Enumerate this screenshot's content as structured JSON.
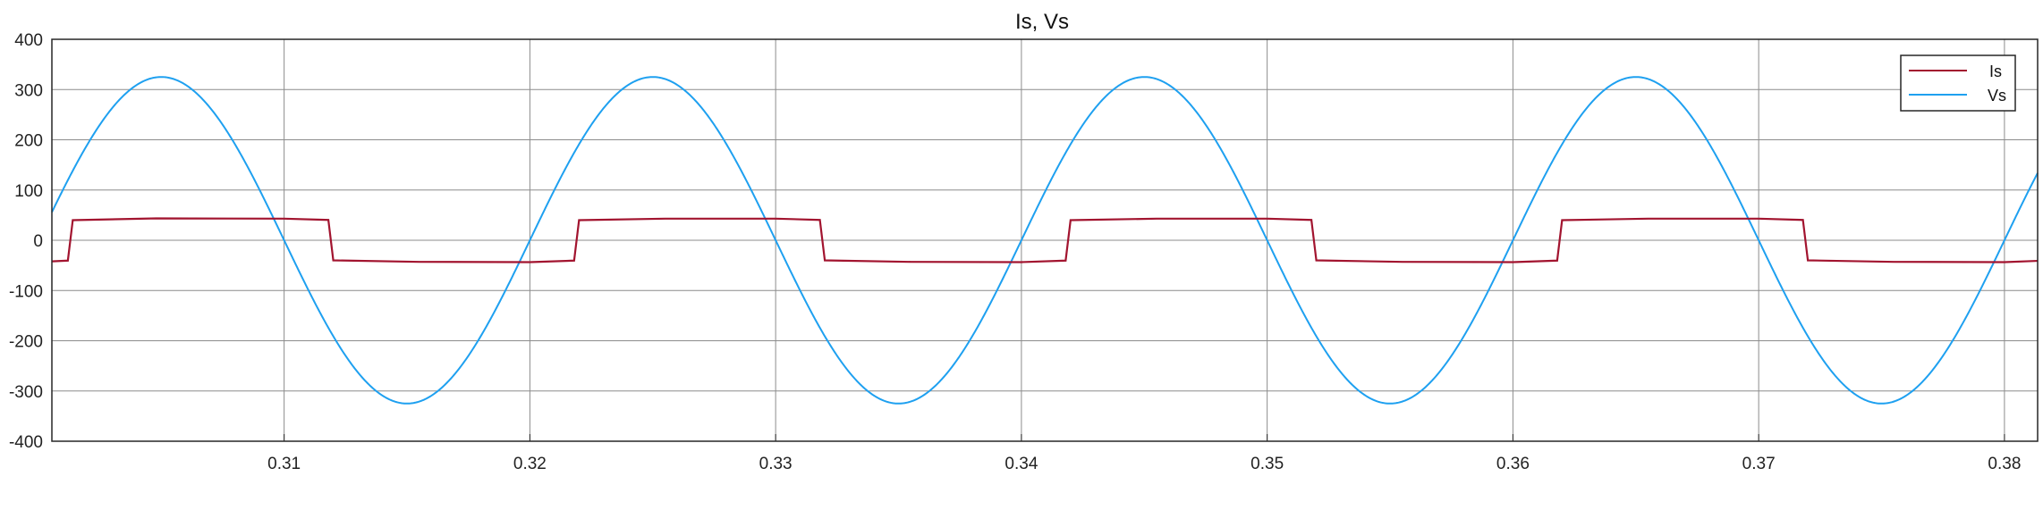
{
  "chart_data": {
    "type": "line",
    "title": "Is, Vs",
    "xlabel": "",
    "ylabel": "",
    "xlim": [
      0.30055,
      0.38135
    ],
    "ylim": [
      -400,
      400
    ],
    "x_ticks": [
      "0.31",
      "0.32",
      "0.33",
      "0.34",
      "0.35",
      "0.36",
      "0.37",
      "0.38"
    ],
    "y_ticks": [
      "400",
      "300",
      "200",
      "100",
      "0",
      "-100",
      "-200",
      "-300",
      "-400"
    ],
    "grid": true,
    "legend_position": "top-right",
    "series": [
      {
        "name": "Is",
        "color": "#a2142f",
        "points": [
          [
            0.30055,
            -42
          ],
          [
            0.3012,
            -40.5
          ],
          [
            0.3014,
            40
          ],
          [
            0.3048,
            43.5
          ],
          [
            0.31,
            43
          ],
          [
            0.3118,
            40.5
          ],
          [
            0.312,
            -40
          ],
          [
            0.3155,
            -43
          ],
          [
            0.32,
            -43.5
          ],
          [
            0.3218,
            -40.5
          ],
          [
            0.322,
            40
          ],
          [
            0.3255,
            43
          ],
          [
            0.33,
            43
          ],
          [
            0.3318,
            40.5
          ],
          [
            0.332,
            -40
          ],
          [
            0.3355,
            -43
          ],
          [
            0.34,
            -43.5
          ],
          [
            0.3418,
            -40.5
          ],
          [
            0.342,
            40
          ],
          [
            0.3455,
            43
          ],
          [
            0.35,
            43
          ],
          [
            0.3518,
            40.5
          ],
          [
            0.352,
            -40
          ],
          [
            0.3555,
            -43
          ],
          [
            0.36,
            -43.5
          ],
          [
            0.3618,
            -40.5
          ],
          [
            0.362,
            40
          ],
          [
            0.3655,
            43
          ],
          [
            0.37,
            43
          ],
          [
            0.3718,
            40.5
          ],
          [
            0.372,
            -40
          ],
          [
            0.3755,
            -43
          ],
          [
            0.38,
            -43.5
          ],
          [
            0.38135,
            -41
          ]
        ]
      },
      {
        "name": "Vs",
        "color": "#1ea0f0",
        "amplitude": 325,
        "frequency_hz": 50,
        "peak_at": 0.305
      }
    ]
  }
}
